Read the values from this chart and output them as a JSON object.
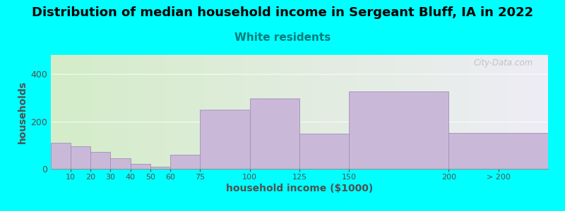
{
  "title": "Distribution of median household income in Sergeant Bluff, IA in 2022",
  "subtitle": "White residents",
  "xlabel": "household income ($1000)",
  "ylabel": "households",
  "background_color": "#00FFFF",
  "plot_bg_gradient_left": "#d4edc8",
  "plot_bg_gradient_right": "#eeecf5",
  "bar_color": "#c9b8d8",
  "bar_edge_color": "#a090b8",
  "categories": [
    "10",
    "20",
    "30",
    "40",
    "50",
    "60",
    "75",
    "100",
    "125",
    "150",
    "200",
    "> 200"
  ],
  "bin_edges": [
    0,
    10,
    20,
    30,
    40,
    50,
    60,
    75,
    100,
    125,
    150,
    200,
    250
  ],
  "values": [
    110,
    95,
    70,
    45,
    22,
    10,
    58,
    248,
    295,
    148,
    325,
    150
  ],
  "ylim": [
    0,
    480
  ],
  "yticks": [
    0,
    200,
    400
  ],
  "watermark": "City-Data.com",
  "title_fontsize": 13,
  "subtitle_fontsize": 11,
  "subtitle_color": "#007a7a",
  "tick_label_color": "#505050",
  "ylabel_color": "#505050",
  "xlabel_color": "#505050"
}
